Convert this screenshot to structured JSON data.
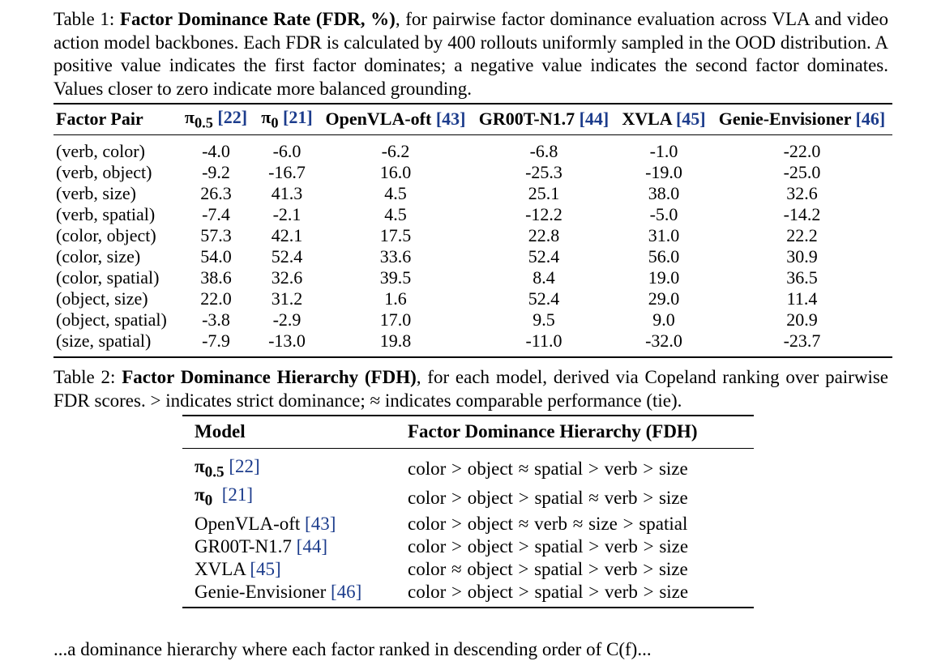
{
  "table1": {
    "caption_label": "Table 1:",
    "caption_bold": "Factor Dominance Rate (FDR, %)",
    "caption_text": ", for pairwise factor dominance evaluation across VLA and video action model backbones. Each FDR is calculated by 400 rollouts uniformly sampled in the OOD distribution. A positive value indicates the first factor dominates; a negative value indicates the second factor dominates. Values closer to zero indicate more balanced grounding.",
    "columns": [
      {
        "label": "Factor Pair",
        "pi": false,
        "sub": "",
        "cite": ""
      },
      {
        "label": "π",
        "pi": true,
        "sub": "0.5",
        "cite": "[22]"
      },
      {
        "label": "π",
        "pi": true,
        "sub": "0",
        "cite": "[21]"
      },
      {
        "label": "OpenVLA-oft",
        "pi": false,
        "sub": "",
        "cite": "[43]"
      },
      {
        "label": "GR00T-N1.7",
        "pi": false,
        "sub": "",
        "cite": "[44]"
      },
      {
        "label": "XVLA",
        "pi": false,
        "sub": "",
        "cite": "[45]"
      },
      {
        "label": "Genie-Envisioner",
        "pi": false,
        "sub": "",
        "cite": "[46]"
      }
    ],
    "rows": [
      {
        "pair": "(verb, color)",
        "values": [
          "-4.0",
          "-6.0",
          "-6.2",
          "-6.8",
          "-1.0",
          "-22.0"
        ]
      },
      {
        "pair": "(verb, object)",
        "values": [
          "-9.2",
          "-16.7",
          "16.0",
          "-25.3",
          "-19.0",
          "-25.0"
        ]
      },
      {
        "pair": "(verb, size)",
        "values": [
          "26.3",
          "41.3",
          "4.5",
          "25.1",
          "38.0",
          "32.6"
        ]
      },
      {
        "pair": "(verb, spatial)",
        "values": [
          "-7.4",
          "-2.1",
          "4.5",
          "-12.2",
          "-5.0",
          "-14.2"
        ]
      },
      {
        "pair": "(color, object)",
        "values": [
          "57.3",
          "42.1",
          "17.5",
          "22.8",
          "31.0",
          "22.2"
        ]
      },
      {
        "pair": "(color, size)",
        "values": [
          "54.0",
          "52.4",
          "33.6",
          "52.4",
          "56.0",
          "30.9"
        ]
      },
      {
        "pair": "(color, spatial)",
        "values": [
          "38.6",
          "32.6",
          "39.5",
          "8.4",
          "19.0",
          "36.5"
        ]
      },
      {
        "pair": "(object, size)",
        "values": [
          "22.0",
          "31.2",
          "1.6",
          "52.4",
          "29.0",
          "11.4"
        ]
      },
      {
        "pair": "(object, spatial)",
        "values": [
          "-3.8",
          "-2.9",
          "17.0",
          "9.5",
          "9.0",
          "20.9"
        ]
      },
      {
        "pair": "(size, spatial)",
        "values": [
          "-7.9",
          "-13.0",
          "19.8",
          "-11.0",
          "-32.0",
          "-23.7"
        ]
      }
    ]
  },
  "table2": {
    "caption_label": "Table 2:",
    "caption_bold": "Factor Dominance Hierarchy (FDH)",
    "caption_text_1": ", for each model, derived via Copeland ranking over pairwise FDR scores. ",
    "caption_gt": ">",
    "caption_text_2": " indicates strict dominance; ",
    "caption_approx": "≈",
    "caption_text_3": " indicates comparable performance (tie).",
    "headers": [
      "Model",
      "Factor Dominance Hierarchy (FDH)"
    ],
    "rows": [
      {
        "model": "π",
        "pi": true,
        "sub": "0.5",
        "cite": "[22]",
        "hierarchy": [
          "color",
          ">",
          "object",
          "≈",
          "spatial",
          ">",
          "verb",
          ">",
          "size"
        ]
      },
      {
        "model": "π",
        "pi": true,
        "sub": "0",
        "cite": "[21]",
        "hierarchy": [
          "color",
          ">",
          "object",
          ">",
          "spatial",
          "≈",
          "verb",
          ">",
          "size"
        ]
      },
      {
        "model": "OpenVLA-oft",
        "pi": false,
        "sub": "",
        "cite": "[43]",
        "hierarchy": [
          "color",
          ">",
          "object",
          "≈",
          "verb",
          "≈",
          "size",
          ">",
          "spatial"
        ]
      },
      {
        "model": "GR00T-N1.7",
        "pi": false,
        "sub": "",
        "cite": "[44]",
        "hierarchy": [
          "color",
          ">",
          "object",
          ">",
          "spatial",
          ">",
          "verb",
          ">",
          "size"
        ]
      },
      {
        "model": "XVLA",
        "pi": false,
        "sub": "",
        "cite": "[45]",
        "hierarchy": [
          "color",
          "≈",
          "object",
          ">",
          "spatial",
          ">",
          "verb",
          ">",
          "size"
        ]
      },
      {
        "model": "Genie-Envisioner",
        "pi": false,
        "sub": "",
        "cite": "[46]",
        "hierarchy": [
          "color",
          ">",
          "object",
          ">",
          "spatial",
          ">",
          "verb",
          ">",
          "size"
        ]
      }
    ]
  },
  "footer_text": "...a dominance hierarchy where each factor ranked in descending order of C(f)..."
}
